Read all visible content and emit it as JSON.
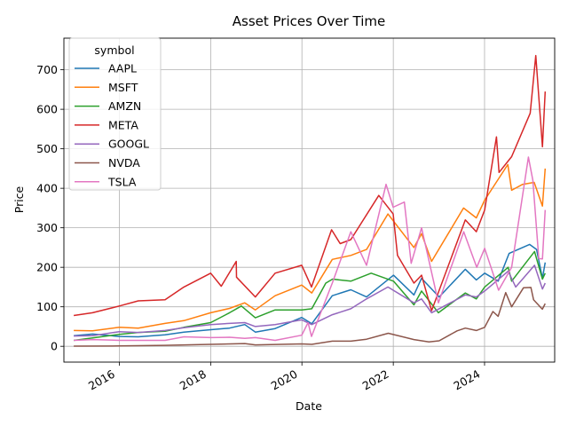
{
  "chart_data": {
    "type": "line",
    "title": "Asset Prices Over Time",
    "xlabel": "Date",
    "ylabel": "Price",
    "xlim": [
      "2014-10-15",
      "2025-07-15"
    ],
    "ylim": [
      -40,
      780
    ],
    "x_ticks": [
      "2016-01-01",
      "2018-01-01",
      "2020-01-01",
      "2022-01-01",
      "2024-01-01"
    ],
    "x_tick_labels": [
      "2016",
      "2018",
      "2020",
      "2022",
      "2024"
    ],
    "y_ticks": [
      0,
      100,
      200,
      300,
      400,
      500,
      600,
      700
    ],
    "y_tick_labels": [
      "0",
      "100",
      "200",
      "300",
      "400",
      "500",
      "600",
      "700"
    ],
    "grid": true,
    "legend": {
      "title": "symbol",
      "placement": "top-left"
    },
    "series": [
      {
        "name": "AAPL",
        "color": "#1f77b4",
        "points": [
          [
            "2015-01-02",
            27
          ],
          [
            "2015-06-01",
            31
          ],
          [
            "2016-01-01",
            25
          ],
          [
            "2016-06-01",
            24
          ],
          [
            "2017-01-01",
            29
          ],
          [
            "2017-06-01",
            36
          ],
          [
            "2018-01-01",
            42
          ],
          [
            "2018-06-01",
            46
          ],
          [
            "2018-10-01",
            55
          ],
          [
            "2018-12-24",
            36
          ],
          [
            "2019-06-01",
            45
          ],
          [
            "2019-12-31",
            73
          ],
          [
            "2020-03-20",
            57
          ],
          [
            "2020-08-31",
            128
          ],
          [
            "2021-01-26",
            143
          ],
          [
            "2021-06-01",
            125
          ],
          [
            "2022-01-03",
            180
          ],
          [
            "2022-06-15",
            130
          ],
          [
            "2022-08-15",
            172
          ],
          [
            "2023-01-03",
            125
          ],
          [
            "2023-07-31",
            195
          ],
          [
            "2023-10-27",
            168
          ],
          [
            "2024-01-02",
            185
          ],
          [
            "2024-04-19",
            165
          ],
          [
            "2024-07-15",
            235
          ],
          [
            "2024-12-26",
            258
          ],
          [
            "2025-02-20",
            245
          ],
          [
            "2025-04-08",
            172
          ],
          [
            "2025-04-30",
            212
          ]
        ]
      },
      {
        "name": "MSFT",
        "color": "#ff7f0e",
        "points": [
          [
            "2015-01-02",
            40
          ],
          [
            "2015-06-01",
            39
          ],
          [
            "2016-01-01",
            48
          ],
          [
            "2016-06-01",
            46
          ],
          [
            "2017-01-01",
            58
          ],
          [
            "2017-06-01",
            65
          ],
          [
            "2018-01-01",
            85
          ],
          [
            "2018-06-01",
            96
          ],
          [
            "2018-10-01",
            110
          ],
          [
            "2018-12-24",
            92
          ],
          [
            "2019-06-01",
            128
          ],
          [
            "2019-12-31",
            155
          ],
          [
            "2020-03-20",
            135
          ],
          [
            "2020-08-31",
            220
          ],
          [
            "2021-01-26",
            230
          ],
          [
            "2021-06-01",
            245
          ],
          [
            "2021-11-19",
            335
          ],
          [
            "2022-06-15",
            250
          ],
          [
            "2022-08-15",
            285
          ],
          [
            "2022-11-03",
            215
          ],
          [
            "2023-07-17",
            350
          ],
          [
            "2023-10-27",
            325
          ],
          [
            "2024-01-02",
            370
          ],
          [
            "2024-07-05",
            460
          ],
          [
            "2024-08-05",
            395
          ],
          [
            "2024-11-01",
            410
          ],
          [
            "2025-02-01",
            415
          ],
          [
            "2025-04-08",
            355
          ],
          [
            "2025-04-30",
            450
          ]
        ]
      },
      {
        "name": "AMZN",
        "color": "#2ca02c",
        "points": [
          [
            "2015-01-02",
            15
          ],
          [
            "2015-06-01",
            21
          ],
          [
            "2016-01-01",
            30
          ],
          [
            "2016-06-01",
            35
          ],
          [
            "2017-01-01",
            38
          ],
          [
            "2017-06-01",
            48
          ],
          [
            "2018-01-01",
            60
          ],
          [
            "2018-06-01",
            85
          ],
          [
            "2018-09-04",
            102
          ],
          [
            "2018-12-24",
            72
          ],
          [
            "2019-06-01",
            92
          ],
          [
            "2019-12-31",
            92
          ],
          [
            "2020-03-20",
            95
          ],
          [
            "2020-07-10",
            160
          ],
          [
            "2020-09-02",
            170
          ],
          [
            "2021-01-26",
            165
          ],
          [
            "2021-07-08",
            185
          ],
          [
            "2022-01-03",
            165
          ],
          [
            "2022-06-15",
            105
          ],
          [
            "2022-08-15",
            140
          ],
          [
            "2022-12-28",
            85
          ],
          [
            "2023-07-31",
            135
          ],
          [
            "2023-10-27",
            120
          ],
          [
            "2024-01-02",
            150
          ],
          [
            "2024-07-08",
            200
          ],
          [
            "2024-08-05",
            165
          ],
          [
            "2025-02-04",
            240
          ],
          [
            "2025-04-08",
            170
          ],
          [
            "2025-04-30",
            185
          ]
        ]
      },
      {
        "name": "META",
        "color": "#d62728",
        "points": [
          [
            "2015-01-02",
            78
          ],
          [
            "2015-06-01",
            85
          ],
          [
            "2016-01-01",
            102
          ],
          [
            "2016-06-01",
            115
          ],
          [
            "2017-01-01",
            118
          ],
          [
            "2017-06-01",
            150
          ],
          [
            "2018-01-01",
            185
          ],
          [
            "2018-03-27",
            152
          ],
          [
            "2018-07-25",
            215
          ],
          [
            "2018-07-27",
            175
          ],
          [
            "2018-12-24",
            125
          ],
          [
            "2019-06-01",
            185
          ],
          [
            "2019-12-31",
            205
          ],
          [
            "2020-03-18",
            150
          ],
          [
            "2020-08-25",
            295
          ],
          [
            "2020-11-02",
            260
          ],
          [
            "2021-01-26",
            270
          ],
          [
            "2021-09-07",
            382
          ],
          [
            "2021-12-31",
            335
          ],
          [
            "2022-02-04",
            230
          ],
          [
            "2022-06-15",
            160
          ],
          [
            "2022-08-15",
            180
          ],
          [
            "2022-11-03",
            90
          ],
          [
            "2023-07-31",
            320
          ],
          [
            "2023-10-27",
            290
          ],
          [
            "2024-01-02",
            345
          ],
          [
            "2024-04-05",
            530
          ],
          [
            "2024-04-26",
            440
          ],
          [
            "2024-08-05",
            480
          ],
          [
            "2024-12-31",
            590
          ],
          [
            "2025-02-14",
            736
          ],
          [
            "2025-04-08",
            505
          ],
          [
            "2025-04-30",
            645
          ]
        ]
      },
      {
        "name": "GOOGL",
        "color": "#9467bd",
        "points": [
          [
            "2015-01-02",
            26
          ],
          [
            "2015-06-01",
            27
          ],
          [
            "2016-01-01",
            37
          ],
          [
            "2016-06-01",
            35
          ],
          [
            "2017-01-01",
            40
          ],
          [
            "2017-06-01",
            47
          ],
          [
            "2018-01-01",
            55
          ],
          [
            "2018-06-01",
            58
          ],
          [
            "2018-10-01",
            60
          ],
          [
            "2018-12-24",
            50
          ],
          [
            "2019-06-01",
            55
          ],
          [
            "2019-12-31",
            67
          ],
          [
            "2020-03-20",
            55
          ],
          [
            "2020-08-31",
            80
          ],
          [
            "2021-01-26",
            95
          ],
          [
            "2021-06-01",
            120
          ],
          [
            "2021-11-19",
            150
          ],
          [
            "2022-06-15",
            110
          ],
          [
            "2022-08-15",
            120
          ],
          [
            "2022-11-03",
            85
          ],
          [
            "2023-07-31",
            130
          ],
          [
            "2023-10-27",
            125
          ],
          [
            "2024-01-02",
            140
          ],
          [
            "2024-07-08",
            190
          ],
          [
            "2024-09-06",
            150
          ],
          [
            "2025-02-04",
            205
          ],
          [
            "2025-04-08",
            145
          ],
          [
            "2025-04-30",
            160
          ]
        ]
      },
      {
        "name": "NVDA",
        "color": "#8c564b",
        "points": [
          [
            "2015-01-02",
            0.5
          ],
          [
            "2016-01-01",
            0.8
          ],
          [
            "2017-01-01",
            2.5
          ],
          [
            "2018-01-01",
            5
          ],
          [
            "2018-10-01",
            7
          ],
          [
            "2018-12-24",
            3.5
          ],
          [
            "2019-12-31",
            6
          ],
          [
            "2020-03-20",
            5
          ],
          [
            "2020-08-31",
            13
          ],
          [
            "2021-01-26",
            13
          ],
          [
            "2021-06-01",
            18
          ],
          [
            "2021-11-22",
            33
          ],
          [
            "2022-06-15",
            17
          ],
          [
            "2022-10-13",
            11
          ],
          [
            "2023-01-03",
            14
          ],
          [
            "2023-05-26",
            39
          ],
          [
            "2023-07-31",
            46
          ],
          [
            "2023-10-27",
            40
          ],
          [
            "2024-01-02",
            48
          ],
          [
            "2024-03-08",
            88
          ],
          [
            "2024-04-19",
            76
          ],
          [
            "2024-06-18",
            136
          ],
          [
            "2024-08-05",
            100
          ],
          [
            "2024-11-07",
            148
          ],
          [
            "2025-01-06",
            149
          ],
          [
            "2025-01-27",
            118
          ],
          [
            "2025-04-07",
            94
          ],
          [
            "2025-04-30",
            108
          ]
        ]
      },
      {
        "name": "TSLA",
        "color": "#e377c2",
        "points": [
          [
            "2015-01-02",
            15
          ],
          [
            "2015-06-01",
            17
          ],
          [
            "2016-01-01",
            15
          ],
          [
            "2016-06-01",
            15
          ],
          [
            "2017-01-01",
            15
          ],
          [
            "2017-06-01",
            24
          ],
          [
            "2018-01-01",
            22
          ],
          [
            "2018-06-01",
            23
          ],
          [
            "2018-10-01",
            20
          ],
          [
            "2018-12-24",
            22
          ],
          [
            "2019-06-01",
            15
          ],
          [
            "2019-12-31",
            28
          ],
          [
            "2020-02-19",
            60
          ],
          [
            "2020-03-18",
            25
          ],
          [
            "2020-08-31",
            160
          ],
          [
            "2021-01-26",
            290
          ],
          [
            "2021-06-01",
            205
          ],
          [
            "2021-11-04",
            410
          ],
          [
            "2021-12-31",
            352
          ],
          [
            "2022-03-30",
            365
          ],
          [
            "2022-05-24",
            210
          ],
          [
            "2022-08-15",
            300
          ],
          [
            "2022-12-28",
            110
          ],
          [
            "2023-07-18",
            290
          ],
          [
            "2023-10-31",
            200
          ],
          [
            "2024-01-02",
            248
          ],
          [
            "2024-04-22",
            142
          ],
          [
            "2024-08-05",
            200
          ],
          [
            "2024-12-17",
            479
          ],
          [
            "2025-01-21",
            420
          ],
          [
            "2025-03-10",
            222
          ],
          [
            "2025-04-08",
            221
          ],
          [
            "2025-04-30",
            345
          ]
        ]
      }
    ]
  }
}
